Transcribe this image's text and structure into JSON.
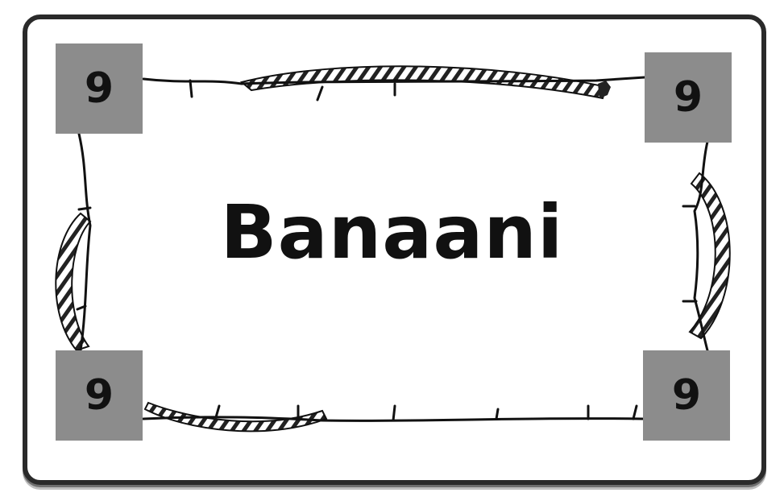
{
  "card": {
    "word": "Banaani",
    "corners": {
      "top_left": "9",
      "top_right": "9",
      "bottom_left": "9",
      "bottom_right": "9"
    }
  },
  "colors": {
    "corner_fill": "#8c8c8c",
    "border": "#2a2a2a",
    "text": "#111111"
  },
  "icons": [
    "parchment-scroll-frame",
    "rope-decoration"
  ]
}
